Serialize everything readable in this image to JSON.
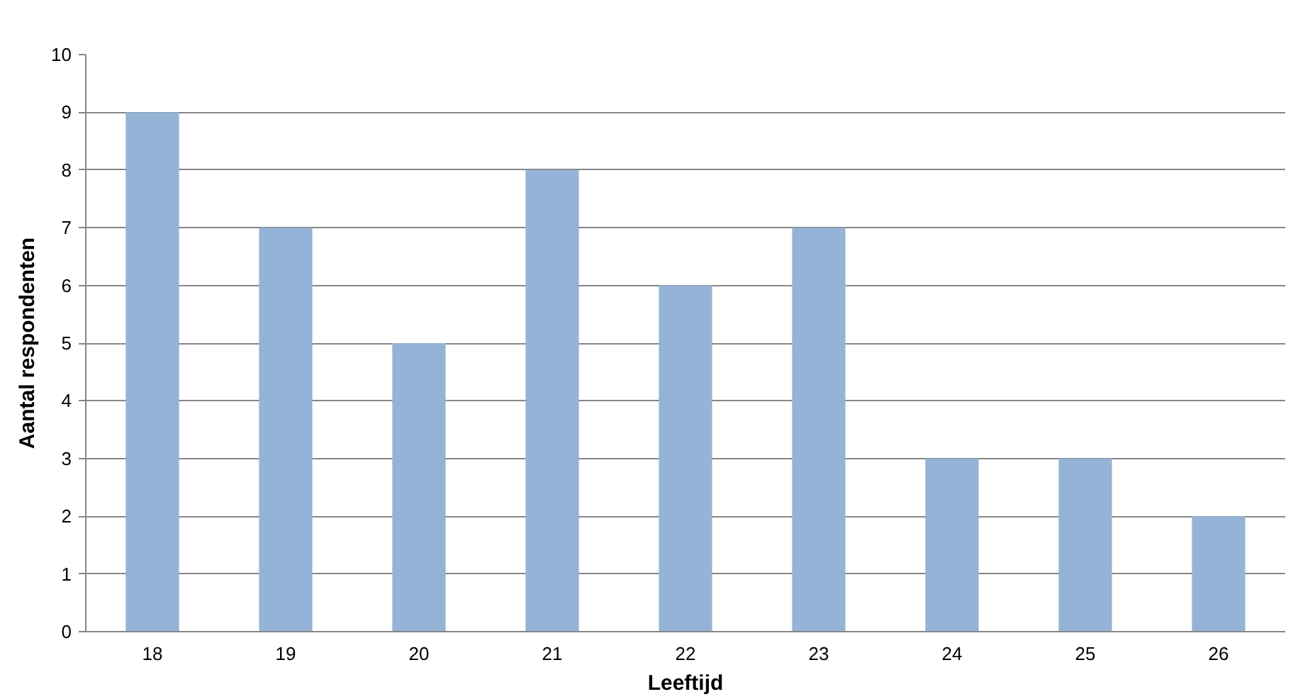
{
  "chart_data": {
    "type": "bar",
    "xlabel": "Leeftijd",
    "ylabel": "Aantal respondenten",
    "categories": [
      "18",
      "19",
      "20",
      "21",
      "22",
      "23",
      "24",
      "25",
      "26"
    ],
    "values": [
      9,
      7,
      5,
      8,
      6,
      7,
      3,
      3,
      2
    ],
    "color": "#95b3d7",
    "ylim": [
      0,
      10
    ],
    "yticks": [
      0,
      1,
      2,
      3,
      4,
      5,
      6,
      7,
      8,
      9,
      10
    ],
    "grid": "y"
  }
}
